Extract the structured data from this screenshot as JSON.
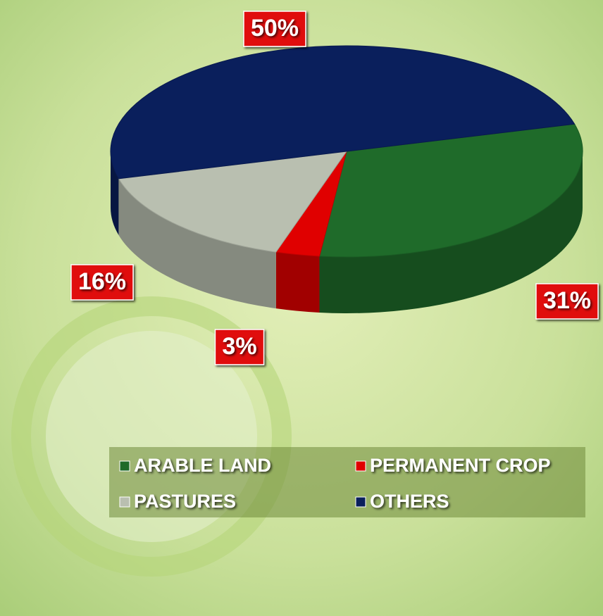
{
  "chart_data": {
    "type": "pie",
    "categories": [
      "ARABLE LAND",
      "PERMANENT CROP",
      "PASTURES",
      "OTHERS"
    ],
    "values": [
      31,
      3,
      16,
      50
    ],
    "value_labels": [
      "31%",
      "3%",
      "16%",
      "50%"
    ],
    "colors": [
      "#1f6b2a",
      "#e00000",
      "#b9bfb0",
      "#0a1f5c"
    ],
    "legend": "bottom"
  }
}
